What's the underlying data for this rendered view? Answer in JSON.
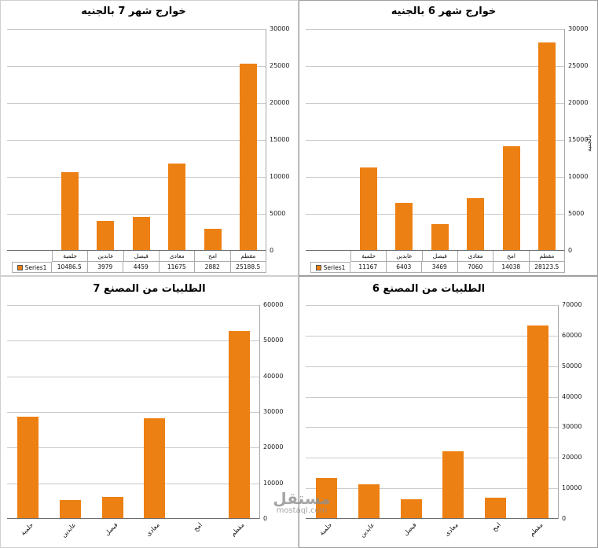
{
  "watermark": {
    "title": "مستقل",
    "domain": "mostaql.com"
  },
  "colors": {
    "bar": "#ED8013",
    "gridline": "#C9C9C9",
    "axis_line": "#6E6E6E",
    "table_border": "#ABABAB"
  },
  "chart_data": [
    {
      "type": "bar",
      "title": "خوارج شهر 7 بالجنيه",
      "legend": "Series1",
      "categories": [
        "حلمية",
        "عابدين",
        "فيصل",
        "معادى",
        "امح",
        "مقطم"
      ],
      "values": [
        10486.5,
        3979,
        4459,
        11675,
        2882,
        25188.5
      ],
      "ylim": [
        0,
        30000
      ],
      "ystep": 5000,
      "grid": true,
      "data_table": true,
      "legend_position": "data-table-left"
    },
    {
      "type": "bar",
      "title": "خوارج شهر 6 بالجنيه",
      "legend": "Series1",
      "ylabel": "بالجنيه",
      "categories": [
        "حلمية",
        "عابدين",
        "فيصل",
        "معادى",
        "امح",
        "مقطم"
      ],
      "values": [
        11167,
        6403,
        3469,
        7060,
        14038,
        28123.5
      ],
      "ylim": [
        0,
        30000
      ],
      "ystep": 5000,
      "grid": true,
      "data_table": true,
      "legend_position": "data-table-left"
    },
    {
      "type": "bar",
      "title": "الطلبيات من المصنع 7",
      "categories": [
        "حلمية",
        "عابدين",
        "فيصل",
        "معادى",
        "امح",
        "مقطم"
      ],
      "values": [
        28500,
        5000,
        6000,
        28000,
        0,
        52500
      ],
      "ylim": [
        0,
        60000
      ],
      "ystep": 10000,
      "grid": true,
      "data_table": false,
      "x_labels_rotated": true
    },
    {
      "type": "bar",
      "title": "الطلبيات من المصنع 6",
      "categories": [
        "حلمية",
        "عابدين",
        "فيصل",
        "معادى",
        "امح",
        "مقطم"
      ],
      "values": [
        13000,
        11000,
        6300,
        22000,
        6800,
        63000
      ],
      "ylim": [
        0,
        70000
      ],
      "ystep": 10000,
      "grid": true,
      "data_table": false,
      "x_labels_rotated": true
    }
  ]
}
